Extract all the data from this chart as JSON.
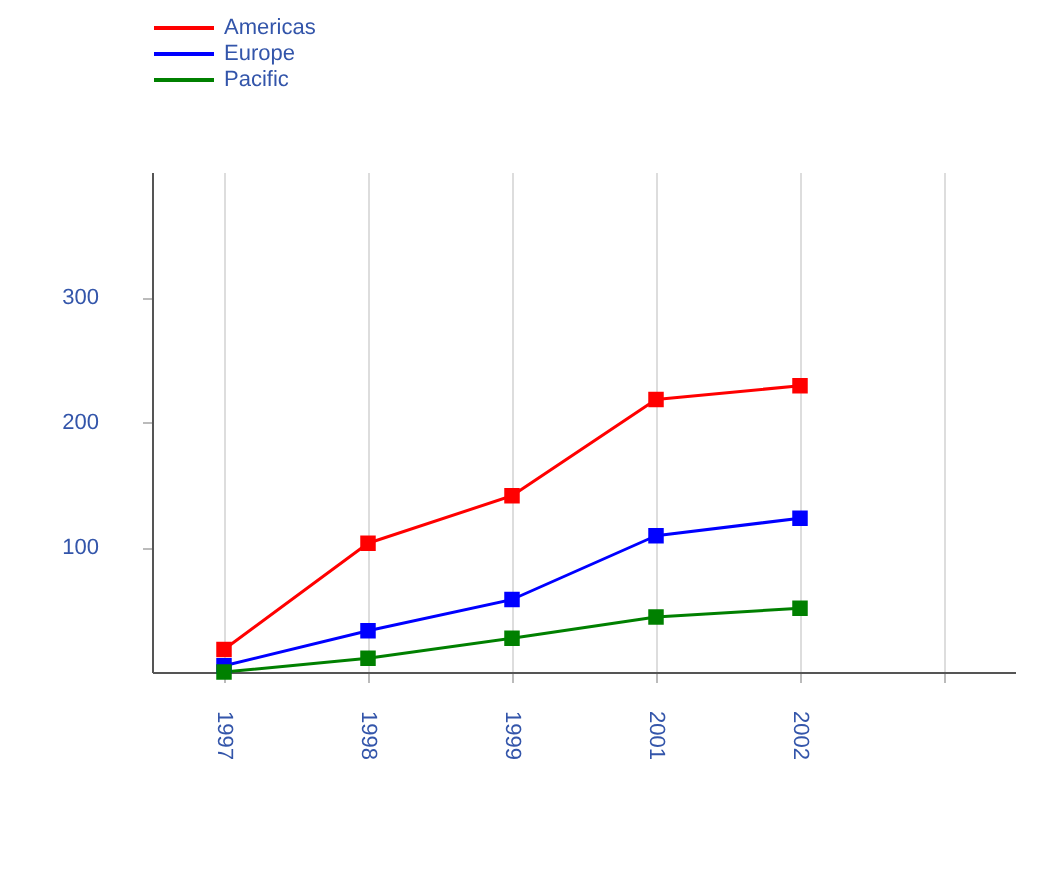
{
  "chart_data": {
    "type": "line",
    "categories": [
      "1997",
      "1998",
      "1999",
      "2001",
      "2002",
      null
    ],
    "series": [
      {
        "name": "Americas",
        "color": "#ff0000",
        "values": [
          18,
          103,
          141,
          218,
          229,
          null
        ]
      },
      {
        "name": "Europe",
        "color": "#0000ff",
        "values": [
          5,
          33,
          58,
          109,
          123,
          null
        ]
      },
      {
        "name": "Pacific",
        "color": "#008000",
        "values": [
          0,
          11,
          27,
          44,
          51,
          null
        ]
      }
    ],
    "ylim": [
      0,
      400
    ],
    "yticks": [
      100,
      200,
      300
    ],
    "grid": "x",
    "legend": "top",
    "marker": "square",
    "line_style": "solid"
  }
}
